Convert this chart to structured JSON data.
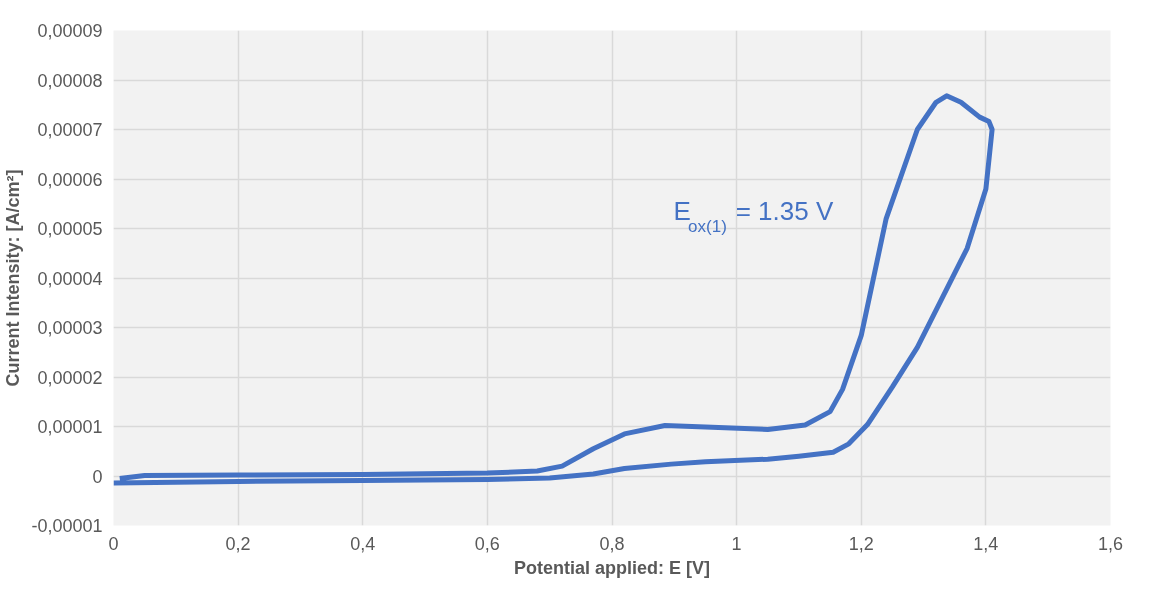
{
  "chart_data": {
    "type": "line",
    "xlabel": "Potential applied: E [V]",
    "ylabel": "Current Intensity: [A/cm²]",
    "series": [
      {
        "color": "#4472c4",
        "x": [
          0.01,
          0.05,
          0.2,
          0.4,
          0.6,
          0.68,
          0.72,
          0.77,
          0.82,
          0.885,
          0.95,
          1.05,
          1.11,
          1.15,
          1.17,
          1.2,
          1.24,
          1.29,
          1.32,
          1.337,
          1.36,
          1.39,
          1.405,
          1.41,
          1.4,
          1.37,
          1.33,
          1.29,
          1.25,
          1.21,
          1.18,
          1.155,
          1.1,
          1.05,
          0.95,
          0.895,
          0.82,
          0.77,
          0.7,
          0.6,
          0.4,
          0.2,
          0.0
        ],
        "values": [
          -5e-07,
          1e-07,
          2e-07,
          3e-07,
          6e-07,
          1e-06,
          2e-06,
          5.5e-06,
          8.5e-06,
          1.02e-05,
          9.9e-06,
          9.4e-06,
          1.03e-05,
          1.3e-05,
          1.75e-05,
          2.84e-05,
          5.2e-05,
          7e-05,
          7.55e-05,
          7.68e-05,
          7.55e-05,
          7.25e-05,
          7.16e-05,
          7e-05,
          5.8e-05,
          4.6e-05,
          3.6e-05,
          2.6e-05,
          1.8e-05,
          1.04e-05,
          6.5e-06,
          4.8e-06,
          4e-06,
          3.4e-06,
          2.9e-06,
          2.4e-06,
          1.5e-06,
          4e-07,
          -4e-07,
          -7e-07,
          -9e-07,
          -1.1e-06,
          -1.4e-06
        ]
      }
    ],
    "xlim": [
      0,
      1.6
    ],
    "xticks": [
      0,
      {
        "value": 0.2,
        "label": "0,2"
      },
      {
        "value": 0.4,
        "label": "0,4"
      },
      {
        "value": 0.6,
        "label": "0,6"
      },
      {
        "value": 0.8,
        "label": "0,8"
      },
      1,
      {
        "value": 1.2,
        "label": "1,2"
      },
      {
        "value": 1.4,
        "label": "1,4"
      },
      {
        "value": 1.6,
        "label": "1,6"
      }
    ],
    "ylim": [
      -1e-05,
      9e-05
    ],
    "yticks": [
      {
        "value": -1e-05,
        "label": "-0,00001"
      },
      0,
      {
        "value": 1e-05,
        "label": "0,00001"
      },
      {
        "value": 2e-05,
        "label": "0,00002"
      },
      {
        "value": 3e-05,
        "label": "0,00003"
      },
      {
        "value": 4e-05,
        "label": "0,00004"
      },
      {
        "value": 5e-05,
        "label": "0,00005"
      },
      {
        "value": 6e-05,
        "label": "0,00006"
      },
      {
        "value": 7e-05,
        "label": "0,00007"
      },
      {
        "value": 8e-05,
        "label": "0,00008"
      },
      {
        "value": 9e-05,
        "label": "0,00009"
      }
    ],
    "grid": true,
    "marker": "none",
    "line_style": "solid",
    "annotations": [
      "E$_{ox(1)}$ = 1.35 V"
    ]
  }
}
